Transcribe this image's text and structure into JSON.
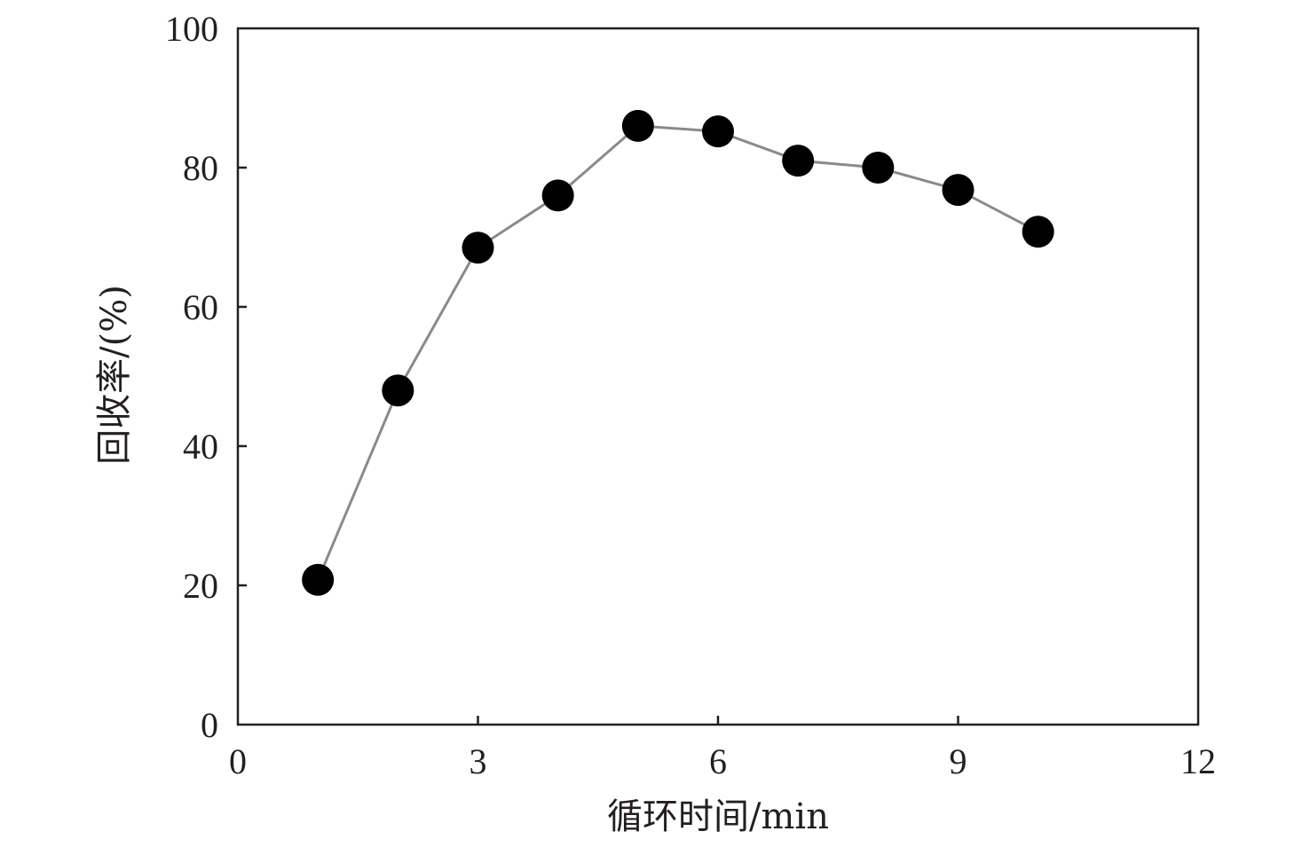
{
  "chart_data": {
    "type": "line",
    "title": "",
    "xlabel": "循环时间/min",
    "ylabel": "回收率/(%)",
    "xlim": [
      0,
      12
    ],
    "ylim": [
      0,
      100
    ],
    "xticks": [
      0,
      3,
      6,
      9,
      12
    ],
    "yticks": [
      0,
      20,
      40,
      60,
      80,
      100
    ],
    "grid": false,
    "legend": "none",
    "series": [
      {
        "x": [
          1,
          2,
          3,
          4,
          5,
          6,
          7,
          8,
          9,
          10
        ],
        "y": [
          20.8,
          48.0,
          68.5,
          76.0,
          86.0,
          85.2,
          81.0,
          80.0,
          76.8,
          70.8
        ]
      }
    ],
    "colors": {
      "line": "#8a8a8a",
      "marker": "#000000",
      "axis": "#231f20"
    }
  }
}
